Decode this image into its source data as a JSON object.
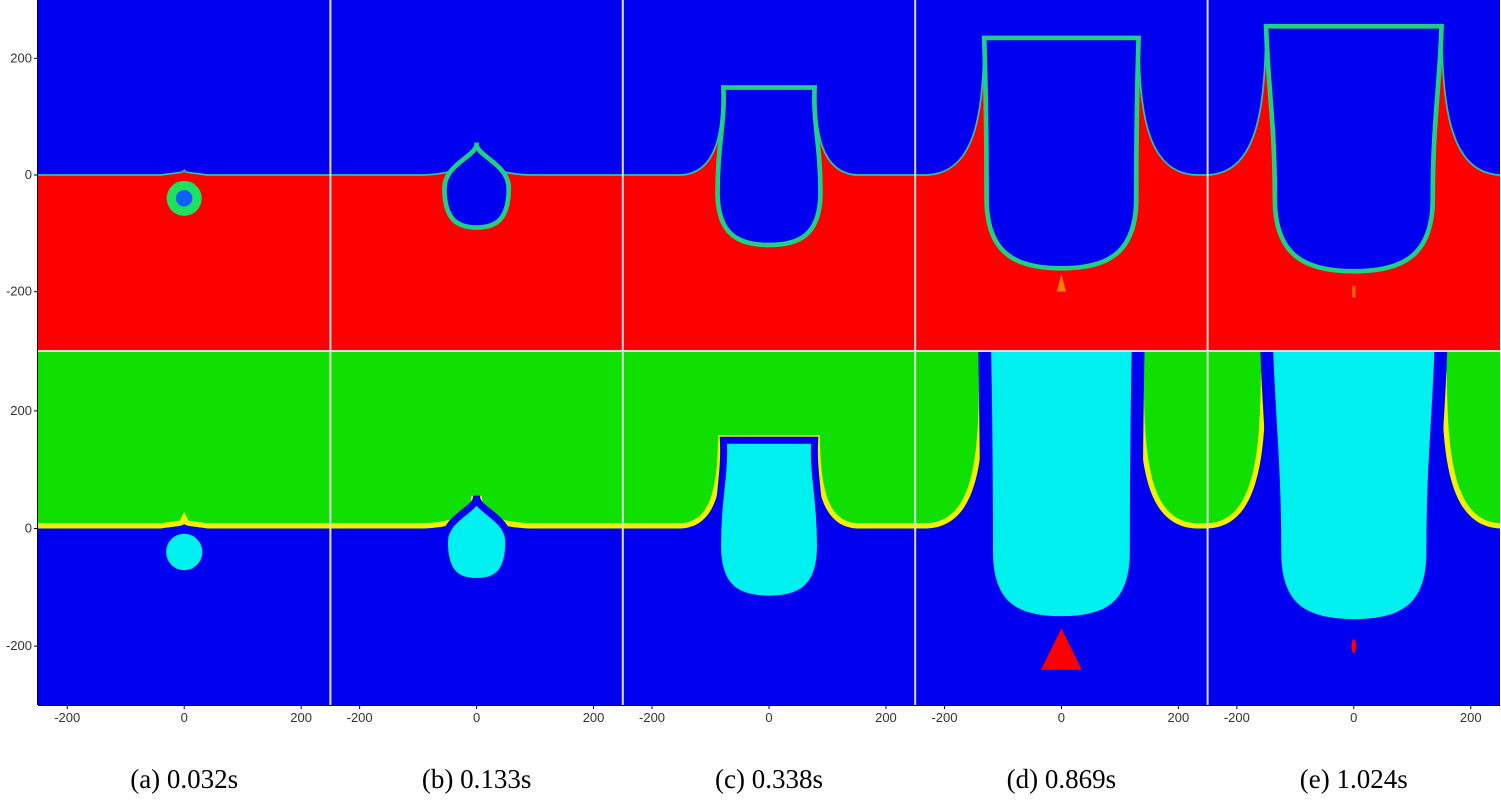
{
  "y_axis": {
    "ylim": [
      -300,
      300
    ],
    "ticks": [
      200,
      0,
      -200
    ]
  },
  "x_axis": {
    "xlim": [
      -250,
      250
    ],
    "ticks": [
      -200,
      0,
      200
    ]
  },
  "panels": [
    {
      "caption": "(a) 0.032s"
    },
    {
      "caption": "(b) 0.133s"
    },
    {
      "caption": "(c) 0.338s"
    },
    {
      "caption": "(d) 0.869s"
    },
    {
      "caption": "(e) 1.024s"
    }
  ]
}
